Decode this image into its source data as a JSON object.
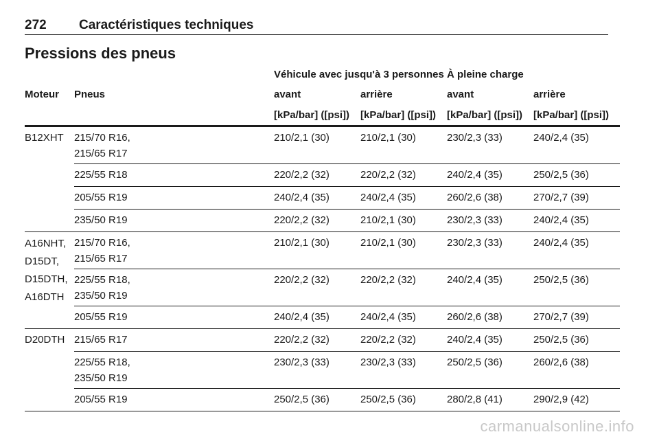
{
  "header": {
    "page_number": "272",
    "chapter": "Caractéristiques techniques"
  },
  "section_title": "Pressions des pneus",
  "table": {
    "group_headers": {
      "partial_load": "Véhicule avec jusqu'à 3 personnes",
      "full_load": "À pleine charge"
    },
    "col_headers": {
      "engine": "Moteur",
      "tyres": "Pneus",
      "front1": "avant",
      "rear1": "arrière",
      "front2": "avant",
      "rear2": "arrière"
    },
    "unit": "[kPa/bar] ([psi])",
    "groups": [
      {
        "engine": "B12XHT",
        "rows": [
          {
            "tyres": [
              "215/70 R16,",
              "215/65 R17"
            ],
            "values": [
              "210/2,1 (30)",
              "210/2,1 (30)",
              "230/2,3 (33)",
              "240/2,4 (35)"
            ]
          },
          {
            "tyres": [
              "225/55 R18"
            ],
            "values": [
              "220/2,2 (32)",
              "220/2,2 (32)",
              "240/2,4 (35)",
              "250/2,5 (36)"
            ]
          },
          {
            "tyres": [
              "205/55 R19"
            ],
            "values": [
              "240/2,4 (35)",
              "240/2,4 (35)",
              "260/2,6 (38)",
              "270/2,7 (39)"
            ]
          },
          {
            "tyres": [
              "235/50 R19"
            ],
            "values": [
              "220/2,2 (32)",
              "210/2,1 (30)",
              "230/2,3 (33)",
              "240/2,4 (35)"
            ]
          }
        ]
      },
      {
        "engine": "A16NHT, D15DT, D15DTH, A16DTH",
        "engine_lines": [
          "A16NHT,",
          "D15DT,",
          "D15DTH,",
          "A16DTH"
        ],
        "rows": [
          {
            "tyres": [
              "215/70 R16,",
              "215/65 R17"
            ],
            "values": [
              "210/2,1 (30)",
              "210/2,1 (30)",
              "230/2,3 (33)",
              "240/2,4 (35)"
            ]
          },
          {
            "tyres": [
              "225/55 R18,",
              "235/50 R19"
            ],
            "values": [
              "220/2,2 (32)",
              "220/2,2 (32)",
              "240/2,4 (35)",
              "250/2,5 (36)"
            ]
          },
          {
            "tyres": [
              "205/55 R19"
            ],
            "values": [
              "240/2,4 (35)",
              "240/2,4 (35)",
              "260/2,6 (38)",
              "270/2,7 (39)"
            ]
          }
        ]
      },
      {
        "engine": "D20DTH",
        "rows": [
          {
            "tyres": [
              "215/65 R17"
            ],
            "values": [
              "220/2,2 (32)",
              "220/2,2 (32)",
              "240/2,4 (35)",
              "250/2,5 (36)"
            ]
          },
          {
            "tyres": [
              "225/55 R18,",
              "235/50 R19"
            ],
            "values": [
              "230/2,3 (33)",
              "230/2,3 (33)",
              "250/2,5 (36)",
              "260/2,6 (38)"
            ]
          },
          {
            "tyres": [
              "205/55 R19"
            ],
            "values": [
              "250/2,5 (36)",
              "250/2,5 (36)",
              "280/2,8 (41)",
              "290/2,9 (42)"
            ]
          }
        ]
      }
    ]
  },
  "watermark": "carmanualsonline.info"
}
